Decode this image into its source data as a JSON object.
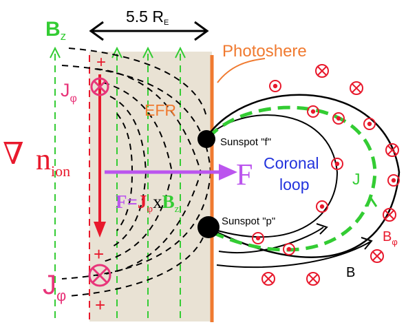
{
  "scale_label": "5.5 R",
  "scale_label_sub": "E",
  "bz_label": "B",
  "bz_sub": "z",
  "photosphere_label": "Photoshere",
  "j_phi_top": "J",
  "j_phi_top_sub": "φ",
  "efr_label": "EFR",
  "grad_symbol": "∇",
  "n_label": "n",
  "n_sub": "ion",
  "force_label": "F",
  "formula_F": "F=",
  "formula_J": "J",
  "formula_phi": "φ",
  "formula_x": "x",
  "formula_B": "B",
  "formula_z": "z",
  "sunspot_f": "Sunspot \"f\"",
  "sunspot_p": "Sunspot \"p\"",
  "coronal_line1": "Coronal",
  "coronal_line2": "loop",
  "j_loop": "J",
  "b_phi_label": "B",
  "b_phi_sub": "φ",
  "b_label": "B",
  "j_phi_bottom": "J",
  "j_phi_bottom_sub": "φ",
  "plus_sign": "+",
  "colors": {
    "green": "#33cc33",
    "red": "#e8192c",
    "orange": "#f07a30",
    "purple": "#bb55ee",
    "blue": "#2233dd",
    "pink": "#e8357a",
    "beige": "#e9e2d4"
  }
}
